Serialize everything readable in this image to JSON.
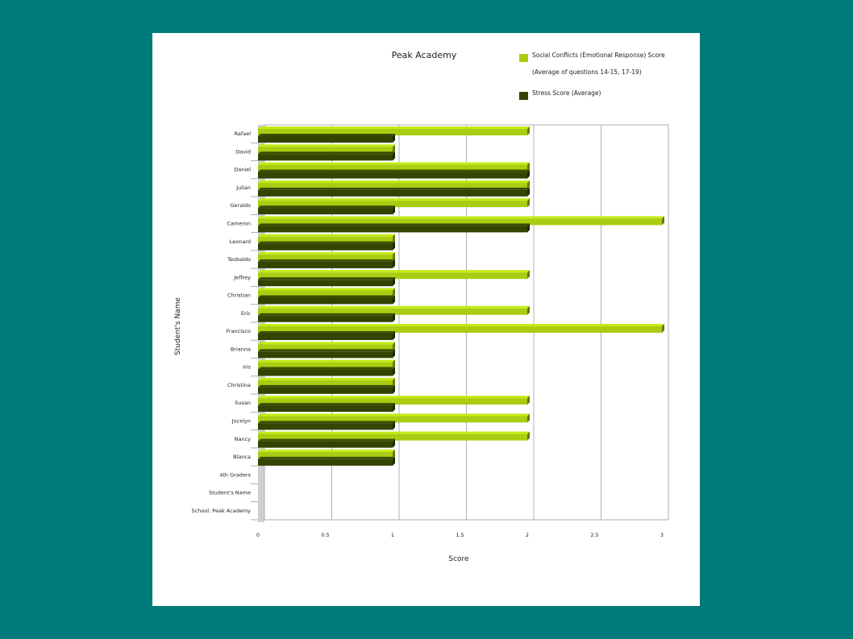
{
  "chart_data": {
    "type": "bar",
    "orientation": "horizontal",
    "title": "Peak Academy",
    "xlabel": "Score",
    "ylabel": "Student's Name",
    "xlim": [
      0,
      3
    ],
    "xticks": [
      0,
      0.5,
      1,
      1.5,
      2,
      2.5,
      3
    ],
    "xtick_labels": [
      "0",
      "0.5",
      "1",
      "1.5",
      "2",
      "2.5",
      "3"
    ],
    "grid": true,
    "legend_position": "top-right",
    "categories": [
      "Rafael",
      "David",
      "Daniel",
      "Julian",
      "Geraldo",
      "Cameron",
      "Leonard",
      "Teobaldo",
      "Jeffrey",
      "Christian",
      "Eric",
      "Francisco",
      "Brianna",
      "Iris",
      "Christina",
      "Susan",
      "Jocelyn",
      "Nancy",
      "Blanca",
      "4th Graders",
      "Student's Name",
      "School: Peak Academy"
    ],
    "series": [
      {
        "name": "Social Conflicts (Emotional Response) Score",
        "name_line2": "(Average of questions 14-15, 17-19)",
        "color": "#aacc11",
        "values": [
          2,
          1,
          2,
          2,
          2,
          3,
          1,
          1,
          2,
          1,
          2,
          3,
          1,
          1,
          1,
          2,
          2,
          2,
          1,
          null,
          null,
          null
        ]
      },
      {
        "name": "Stress Score (Average)",
        "color": "#334400",
        "values": [
          1,
          1,
          2,
          2,
          1,
          2,
          1,
          1,
          1,
          1,
          1,
          1,
          1,
          1,
          1,
          1,
          1,
          1,
          1,
          null,
          null,
          null
        ]
      }
    ]
  }
}
